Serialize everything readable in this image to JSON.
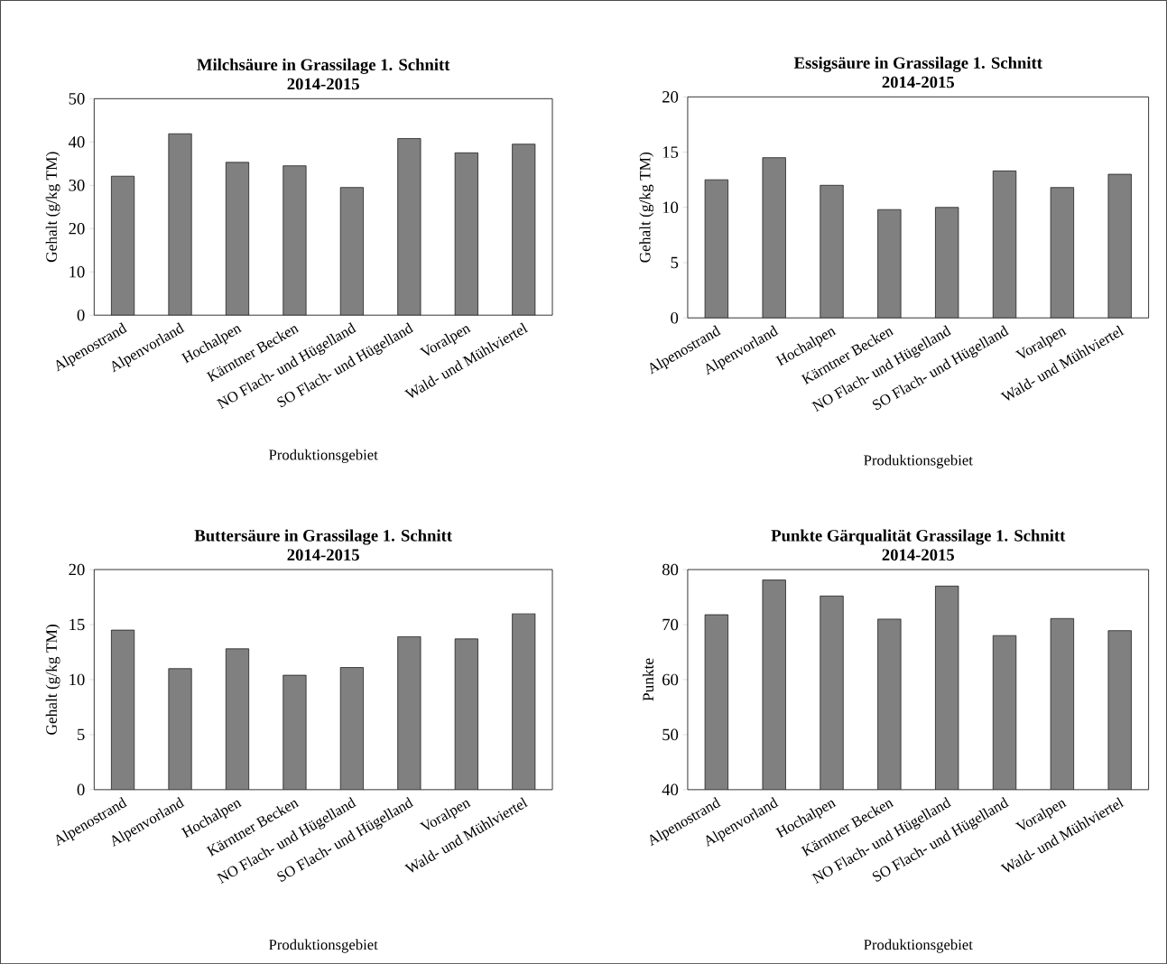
{
  "chart_data": [
    {
      "type": "bar",
      "title": "Milchsäure in Grassilage 1. Schnitt",
      "subtitle": "2014-2015",
      "xlabel": "Produktionsgebiet",
      "ylabel": "Gehalt (g/kg TM)",
      "categories": [
        "Alpenostrand",
        "Alpenvorland",
        "Hochalpen",
        "Kärntner Becken",
        "NO Flach- und Hügelland",
        "SO Flach- und Hügelland",
        "Voralpen",
        "Wald- und Mühlviertel"
      ],
      "values": [
        32.1,
        41.9,
        35.3,
        34.5,
        29.5,
        40.8,
        37.5,
        39.5
      ],
      "color": "#808080",
      "ylim": [
        0,
        50
      ],
      "yticks": [
        0,
        10,
        20,
        30,
        40,
        50
      ]
    },
    {
      "type": "bar",
      "title": "Essigsäure in Grassilage 1. Schnitt",
      "subtitle": "2014-2015",
      "xlabel": "Produktionsgebiet",
      "ylabel": "Gehalt (g/kg TM)",
      "categories": [
        "Alpenostrand",
        "Alpenvorland",
        "Hochalpen",
        "Kärntner Becken",
        "NO Flach- und Hügelland",
        "SO Flach- und Hügelland",
        "Voralpen",
        "Wald- und Mühlviertel"
      ],
      "values": [
        12.5,
        14.5,
        12.0,
        9.8,
        10.0,
        13.3,
        11.8,
        13.0
      ],
      "color": "#808080",
      "ylim": [
        0,
        20
      ],
      "yticks": [
        0,
        5,
        10,
        15,
        20
      ]
    },
    {
      "type": "bar",
      "title": "Buttersäure in Grassilage 1. Schnitt",
      "subtitle": "2014-2015",
      "xlabel": "Produktionsgebiet",
      "ylabel": "Gehalt (g/kg TM)",
      "categories": [
        "Alpenostrand",
        "Alpenvorland",
        "Hochalpen",
        "Kärntner Becken",
        "NO Flach- und Hügelland",
        "SO Flach- und Hügelland",
        "Voralpen",
        "Wald- und Mühlviertel"
      ],
      "values": [
        14.5,
        11.0,
        12.8,
        10.4,
        11.1,
        13.9,
        13.7,
        16.0
      ],
      "color": "#808080",
      "ylim": [
        0,
        20
      ],
      "yticks": [
        0,
        5,
        10,
        15,
        20
      ]
    },
    {
      "type": "bar",
      "title": "Punkte Gärqualität Grassilage 1. Schnitt",
      "subtitle": "2014-2015",
      "xlabel": "Produktionsgebiet",
      "ylabel": "Punkte",
      "categories": [
        "Alpenostrand",
        "Alpenvorland",
        "Hochalpen",
        "Kärntner Becken",
        "NO Flach- und Hügelland",
        "SO Flach- und Hügelland",
        "Voralpen",
        "Wald- und Mühlviertel"
      ],
      "values": [
        71.8,
        78.1,
        75.2,
        71.0,
        77.0,
        68.0,
        71.1,
        68.9
      ],
      "color": "#808080",
      "ylim": [
        40,
        80
      ],
      "yticks": [
        40,
        50,
        60,
        70,
        80
      ]
    }
  ]
}
